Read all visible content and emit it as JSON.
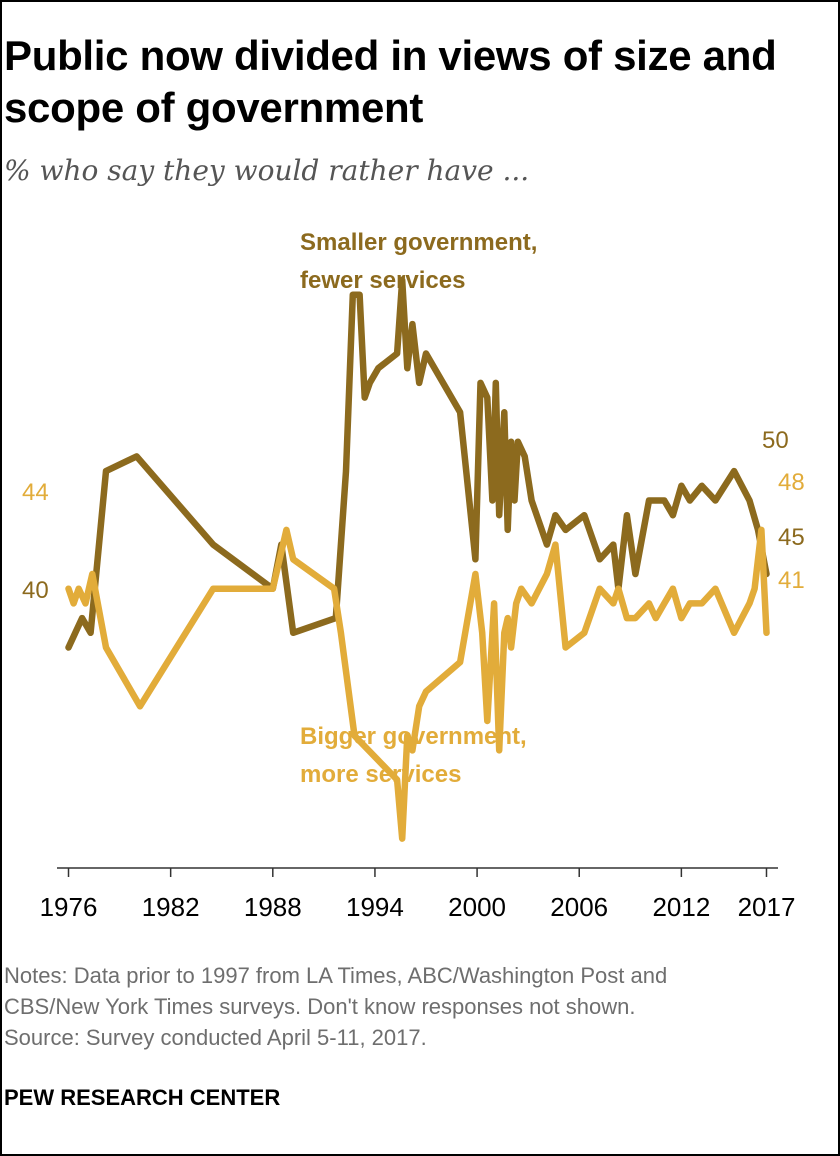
{
  "header": {
    "title_line1": "Public now divided in views of size and",
    "title_line2": "scope of government",
    "subtitle": "% who say they would rather have ..."
  },
  "chart_data": {
    "type": "line",
    "title": "Public now divided in views of size and scope of government",
    "subtitle": "% who say they would rather have ...",
    "xlabel": "",
    "ylabel": "",
    "xlim": [
      1975.5,
      2017.5
    ],
    "ylim": [
      25,
      65
    ],
    "grid": false,
    "x_ticks": [
      1976,
      1982,
      1988,
      1994,
      2000,
      2006,
      2012,
      2017
    ],
    "x_tick_labels": [
      "1976",
      "1982",
      "1988",
      "1994",
      "2000",
      "2006",
      "2012",
      "2017"
    ],
    "series": [
      {
        "name": "Smaller government, fewer services",
        "label_lines": [
          "Smaller government,",
          "fewer services"
        ],
        "color": "#8c6a1e",
        "x": [
          1976.0,
          1976.4,
          1976.8,
          1977.3,
          1978.2,
          1980.0,
          1984.5,
          1988.0,
          1988.5,
          1989.2,
          1991.7,
          1992.3,
          1992.7,
          1993.1,
          1993.4,
          1993.7,
          1994.2,
          1995.3,
          1995.6,
          1995.9,
          1996.2,
          1996.6,
          1997.0,
          1999.0,
          1999.9,
          2000.2,
          2000.6,
          2000.9,
          2001.1,
          2001.3,
          2001.6,
          2001.8,
          2002.0,
          2002.2,
          2002.4,
          2002.8,
          2003.2,
          2004.1,
          2004.6,
          2005.2,
          2006.3,
          2007.2,
          2008.0,
          2008.3,
          2008.8,
          2009.3,
          2010.1,
          2010.5,
          2011.0,
          2011.5,
          2012.0,
          2012.5,
          2013.2,
          2014.0,
          2015.1,
          2016.0,
          2016.5,
          2017.0
        ],
        "values": [
          40,
          41,
          42,
          41,
          52,
          53,
          47,
          44,
          47,
          41,
          42,
          52,
          64,
          64,
          57,
          58,
          59,
          60,
          65,
          59,
          62,
          58,
          60,
          56,
          46,
          58,
          57,
          50,
          58,
          49,
          56,
          48,
          54,
          50,
          54,
          53,
          50,
          47,
          49,
          48,
          49,
          46,
          47,
          44,
          49,
          45,
          50,
          50,
          50,
          49,
          51,
          50,
          51,
          50,
          52,
          50,
          48,
          45
        ],
        "end_labels": {
          "first": "40",
          "peak_end": "50",
          "last": "45"
        }
      },
      {
        "name": "Bigger government, more services",
        "label_lines": [
          "Bigger government,",
          "more services"
        ],
        "color": "#e2ac3a",
        "x": [
          1976.0,
          1976.3,
          1976.6,
          1977.0,
          1977.4,
          1978.2,
          1980.2,
          1984.5,
          1988.0,
          1988.8,
          1989.2,
          1991.6,
          1992.0,
          1992.8,
          1995.3,
          1995.6,
          1995.9,
          1996.2,
          1996.6,
          1997.0,
          1999.0,
          1999.9,
          2000.3,
          2000.6,
          2001.0,
          2001.3,
          2001.6,
          2001.8,
          2002.0,
          2002.3,
          2002.6,
          2003.2,
          2004.1,
          2004.6,
          2005.2,
          2006.3,
          2007.2,
          2008.0,
          2008.3,
          2008.8,
          2009.3,
          2010.1,
          2010.5,
          2011.0,
          2011.5,
          2012.0,
          2012.5,
          2013.2,
          2014.0,
          2015.1,
          2016.0,
          2016.3,
          2016.7,
          2017.0
        ],
        "values": [
          44,
          43,
          44,
          43,
          45,
          40,
          36,
          44,
          44,
          48,
          46,
          44,
          41,
          34,
          31,
          27,
          34,
          33,
          36,
          37,
          39,
          45,
          41,
          35,
          43,
          33,
          41,
          42,
          40,
          43,
          44,
          43,
          45,
          47,
          40,
          41,
          44,
          43,
          44,
          42,
          42,
          43,
          42,
          43,
          44,
          42,
          43,
          43,
          44,
          41,
          43,
          44,
          48,
          41
        ],
        "end_labels": {
          "first": "44",
          "peak_end": "48",
          "last": "41"
        }
      }
    ]
  },
  "notes": {
    "line1": "Notes: Data prior to 1997 from LA Times, ABC/Washington Post and",
    "line2": "CBS/New York Times surveys. Don't know responses not shown.",
    "line3": "Source: Survey conducted April 5-11, 2017."
  },
  "footer": {
    "source_org": "PEW RESEARCH CENTER"
  }
}
